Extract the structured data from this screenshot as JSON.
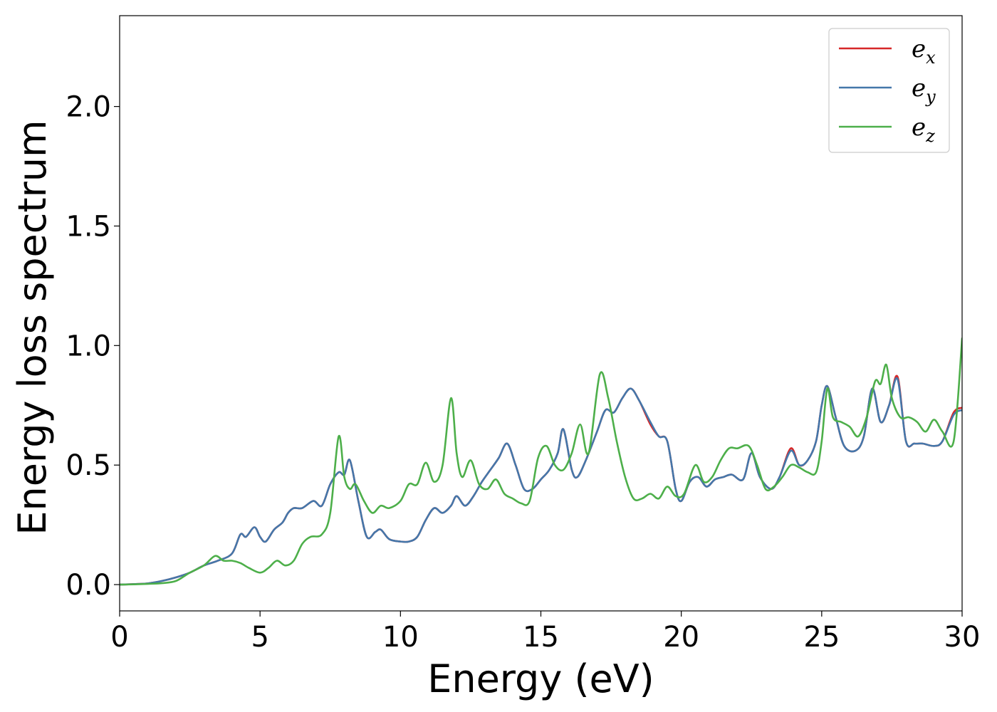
{
  "chart_data": {
    "type": "line",
    "title": "",
    "xlabel": "Energy (eV)",
    "ylabel": "Energy loss spectrum",
    "xlim": [
      0,
      30
    ],
    "ylim": [
      -0.11,
      2.38
    ],
    "xticks": [
      0,
      5,
      10,
      15,
      20,
      25,
      30
    ],
    "yticks": [
      0.0,
      0.5,
      1.0,
      1.5,
      2.0
    ],
    "xtick_labels": [
      "0",
      "5",
      "10",
      "15",
      "20",
      "25",
      "30"
    ],
    "ytick_labels": [
      "0.0",
      "0.5",
      "1.0",
      "1.5",
      "2.0"
    ],
    "grid": false,
    "legend_position": "top-right",
    "series": [
      {
        "name": "e_x",
        "legend": {
          "base": "e",
          "sub": "x"
        },
        "color": "#d62728",
        "x": [
          0,
          0.5,
          1,
          1.5,
          2,
          2.5,
          3,
          3.5,
          4,
          4.3,
          4.5,
          4.8,
          5,
          5.2,
          5.5,
          5.8,
          6,
          6.2,
          6.5,
          6.9,
          7.2,
          7.5,
          7.8,
          8,
          8.2,
          8.5,
          8.8,
          9.1,
          9.3,
          9.6,
          10,
          10.3,
          10.6,
          10.9,
          11.2,
          11.5,
          11.8,
          12,
          12.3,
          12.6,
          12.9,
          13.2,
          13.5,
          13.8,
          14.1,
          14.4,
          14.7,
          15,
          15.3,
          15.6,
          15.8,
          16.1,
          16.3,
          16.6,
          17,
          17.3,
          17.6,
          17.9,
          18.2,
          18.5,
          18.9,
          19.2,
          19.5,
          19.8,
          20,
          20.3,
          20.6,
          20.9,
          21.2,
          21.5,
          21.8,
          22.2,
          22.5,
          22.8,
          23.2,
          23.5,
          23.9,
          24.2,
          24.5,
          24.8,
          25,
          25.2,
          25.5,
          25.8,
          26.2,
          26.5,
          26.8,
          27.1,
          27.4,
          27.7,
          28,
          28.3,
          28.6,
          29,
          29.3,
          29.7,
          30
        ],
        "y": [
          0,
          0.002,
          0.005,
          0.015,
          0.03,
          0.05,
          0.08,
          0.1,
          0.13,
          0.21,
          0.2,
          0.24,
          0.2,
          0.18,
          0.23,
          0.26,
          0.3,
          0.32,
          0.32,
          0.35,
          0.33,
          0.42,
          0.47,
          0.46,
          0.52,
          0.35,
          0.2,
          0.22,
          0.23,
          0.19,
          0.18,
          0.18,
          0.2,
          0.27,
          0.32,
          0.3,
          0.33,
          0.37,
          0.33,
          0.37,
          0.43,
          0.48,
          0.53,
          0.59,
          0.5,
          0.4,
          0.4,
          0.44,
          0.48,
          0.55,
          0.65,
          0.48,
          0.45,
          0.52,
          0.64,
          0.73,
          0.72,
          0.78,
          0.82,
          0.77,
          0.67,
          0.62,
          0.6,
          0.4,
          0.35,
          0.43,
          0.45,
          0.41,
          0.44,
          0.45,
          0.46,
          0.44,
          0.55,
          0.45,
          0.4,
          0.45,
          0.57,
          0.5,
          0.52,
          0.6,
          0.75,
          0.83,
          0.7,
          0.58,
          0.56,
          0.62,
          0.82,
          0.68,
          0.75,
          0.87,
          0.6,
          0.59,
          0.59,
          0.58,
          0.6,
          0.72,
          0.74
        ]
      },
      {
        "name": "e_y",
        "legend": {
          "base": "e",
          "sub": "y"
        },
        "color": "#4477aa",
        "x": [
          0,
          0.5,
          1,
          1.5,
          2,
          2.5,
          3,
          3.5,
          4,
          4.3,
          4.5,
          4.8,
          5,
          5.2,
          5.5,
          5.8,
          6,
          6.2,
          6.5,
          6.9,
          7.2,
          7.5,
          7.8,
          8,
          8.2,
          8.5,
          8.8,
          9.1,
          9.3,
          9.6,
          10,
          10.3,
          10.6,
          10.9,
          11.2,
          11.5,
          11.8,
          12,
          12.3,
          12.6,
          12.9,
          13.2,
          13.5,
          13.8,
          14.1,
          14.4,
          14.7,
          15,
          15.3,
          15.6,
          15.8,
          16.1,
          16.3,
          16.6,
          17,
          17.3,
          17.6,
          17.9,
          18.2,
          18.5,
          18.9,
          19.2,
          19.5,
          19.8,
          20,
          20.3,
          20.6,
          20.9,
          21.2,
          21.5,
          21.8,
          22.2,
          22.5,
          22.8,
          23.2,
          23.5,
          23.9,
          24.2,
          24.5,
          24.8,
          25,
          25.2,
          25.5,
          25.8,
          26.2,
          26.5,
          26.8,
          27.1,
          27.4,
          27.7,
          28,
          28.3,
          28.6,
          29,
          29.3,
          29.7,
          30
        ],
        "y": [
          0,
          0.002,
          0.005,
          0.015,
          0.03,
          0.05,
          0.08,
          0.1,
          0.13,
          0.21,
          0.2,
          0.24,
          0.2,
          0.18,
          0.23,
          0.26,
          0.3,
          0.32,
          0.32,
          0.35,
          0.33,
          0.42,
          0.47,
          0.46,
          0.52,
          0.35,
          0.2,
          0.22,
          0.23,
          0.19,
          0.18,
          0.18,
          0.2,
          0.27,
          0.32,
          0.3,
          0.33,
          0.37,
          0.33,
          0.37,
          0.43,
          0.48,
          0.53,
          0.59,
          0.5,
          0.4,
          0.4,
          0.44,
          0.48,
          0.55,
          0.65,
          0.48,
          0.45,
          0.52,
          0.64,
          0.73,
          0.72,
          0.78,
          0.82,
          0.77,
          0.68,
          0.62,
          0.6,
          0.4,
          0.35,
          0.43,
          0.45,
          0.41,
          0.44,
          0.45,
          0.46,
          0.44,
          0.55,
          0.45,
          0.4,
          0.45,
          0.56,
          0.5,
          0.52,
          0.6,
          0.75,
          0.83,
          0.7,
          0.58,
          0.56,
          0.62,
          0.82,
          0.68,
          0.75,
          0.86,
          0.6,
          0.59,
          0.59,
          0.58,
          0.6,
          0.71,
          0.73
        ]
      },
      {
        "name": "e_z",
        "legend": {
          "base": "e",
          "sub": "z"
        },
        "color": "#4daf4a",
        "x": [
          0,
          0.5,
          1,
          1.5,
          2,
          2.5,
          3,
          3.4,
          3.7,
          4,
          4.3,
          4.6,
          5,
          5.3,
          5.6,
          5.9,
          6.2,
          6.5,
          6.8,
          7.2,
          7.5,
          7.8,
          8,
          8.2,
          8.4,
          8.7,
          9,
          9.3,
          9.6,
          10,
          10.3,
          10.6,
          10.9,
          11.2,
          11.5,
          11.8,
          12,
          12.2,
          12.5,
          12.8,
          13.1,
          13.4,
          13.7,
          14,
          14.3,
          14.6,
          14.9,
          15.2,
          15.5,
          15.8,
          16.1,
          16.4,
          16.7,
          17.1,
          17.4,
          17.7,
          18,
          18.3,
          18.6,
          18.9,
          19.2,
          19.5,
          19.8,
          20.1,
          20.5,
          20.8,
          21.1,
          21.4,
          21.7,
          22,
          22.4,
          22.7,
          23,
          23.3,
          23.6,
          23.9,
          24.2,
          24.5,
          24.8,
          25,
          25.2,
          25.4,
          25.7,
          26,
          26.3,
          26.6,
          26.9,
          27.1,
          27.3,
          27.5,
          27.8,
          28.1,
          28.4,
          28.7,
          29,
          29.3,
          29.7,
          30
        ],
        "y": [
          0,
          0.001,
          0.003,
          0.006,
          0.015,
          0.05,
          0.08,
          0.12,
          0.1,
          0.1,
          0.09,
          0.07,
          0.05,
          0.07,
          0.1,
          0.08,
          0.1,
          0.17,
          0.2,
          0.21,
          0.3,
          0.62,
          0.45,
          0.4,
          0.42,
          0.35,
          0.3,
          0.33,
          0.32,
          0.35,
          0.42,
          0.42,
          0.51,
          0.43,
          0.5,
          0.78,
          0.55,
          0.45,
          0.52,
          0.42,
          0.4,
          0.44,
          0.38,
          0.36,
          0.34,
          0.35,
          0.53,
          0.58,
          0.5,
          0.48,
          0.55,
          0.67,
          0.55,
          0.88,
          0.78,
          0.6,
          0.45,
          0.36,
          0.36,
          0.38,
          0.36,
          0.41,
          0.37,
          0.38,
          0.5,
          0.43,
          0.45,
          0.52,
          0.57,
          0.57,
          0.58,
          0.5,
          0.4,
          0.41,
          0.45,
          0.5,
          0.49,
          0.47,
          0.47,
          0.6,
          0.82,
          0.7,
          0.68,
          0.66,
          0.62,
          0.7,
          0.85,
          0.84,
          0.92,
          0.78,
          0.7,
          0.7,
          0.68,
          0.64,
          0.69,
          0.64,
          0.6,
          1.03
        ]
      }
    ]
  }
}
